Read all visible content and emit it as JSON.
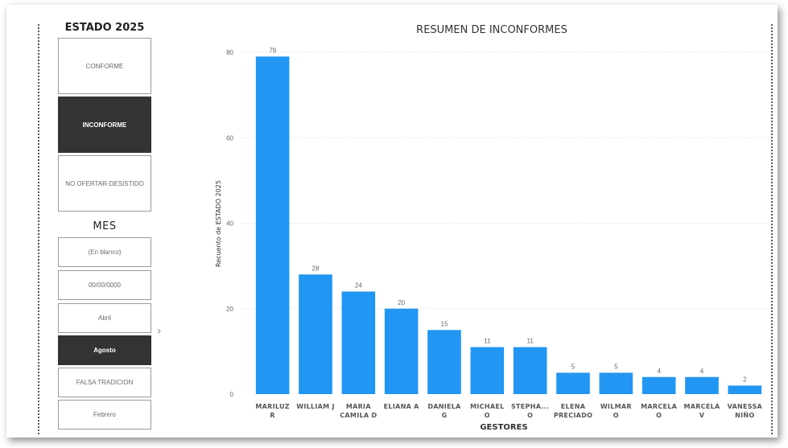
{
  "slicers": {
    "estado": {
      "title": "ESTADO 2025",
      "items": [
        {
          "label": "CONFORME",
          "selected": false
        },
        {
          "label": "INCONFORME",
          "selected": true
        },
        {
          "label": "NO OFERTAR-DESISTIDO",
          "selected": false
        }
      ]
    },
    "mes": {
      "title": "MES",
      "items": [
        {
          "label": "(En blanco)",
          "selected": false
        },
        {
          "label": "00/00/0000",
          "selected": false
        },
        {
          "label": "Abril",
          "selected": false
        },
        {
          "label": "Agosto",
          "selected": true
        },
        {
          "label": "FALSA TRADICION",
          "selected": false
        },
        {
          "label": "Febrero",
          "selected": false
        }
      ],
      "scroll_icon": "chevron-right-icon"
    }
  },
  "chart_data": {
    "type": "bar",
    "title": "RESUMEN DE INCONFORMES",
    "xlabel": "GESTORES",
    "ylabel": "Recuento de ESTADO 2025",
    "ylim": [
      0,
      80
    ],
    "yticks": [
      0,
      20,
      40,
      60,
      80
    ],
    "grid": true,
    "bar_color": "#2196F3",
    "categories": [
      [
        "MARILUZ",
        "R"
      ],
      [
        "WILLIAM J"
      ],
      [
        "MARIA",
        "CAMILA D"
      ],
      [
        "ELIANA A"
      ],
      [
        "DANIELA",
        "G"
      ],
      [
        "MICHAEL",
        "O"
      ],
      [
        "STEPHA...",
        "O"
      ],
      [
        "ELENA",
        "PRECIADO"
      ],
      [
        "WILMAR",
        "O"
      ],
      [
        "MARCELA",
        "O"
      ],
      [
        "MARCELA",
        "V"
      ],
      [
        "VANESSA",
        "NIÑO"
      ]
    ],
    "values": [
      79,
      28,
      24,
      20,
      15,
      11,
      11,
      5,
      5,
      4,
      4,
      2
    ]
  }
}
